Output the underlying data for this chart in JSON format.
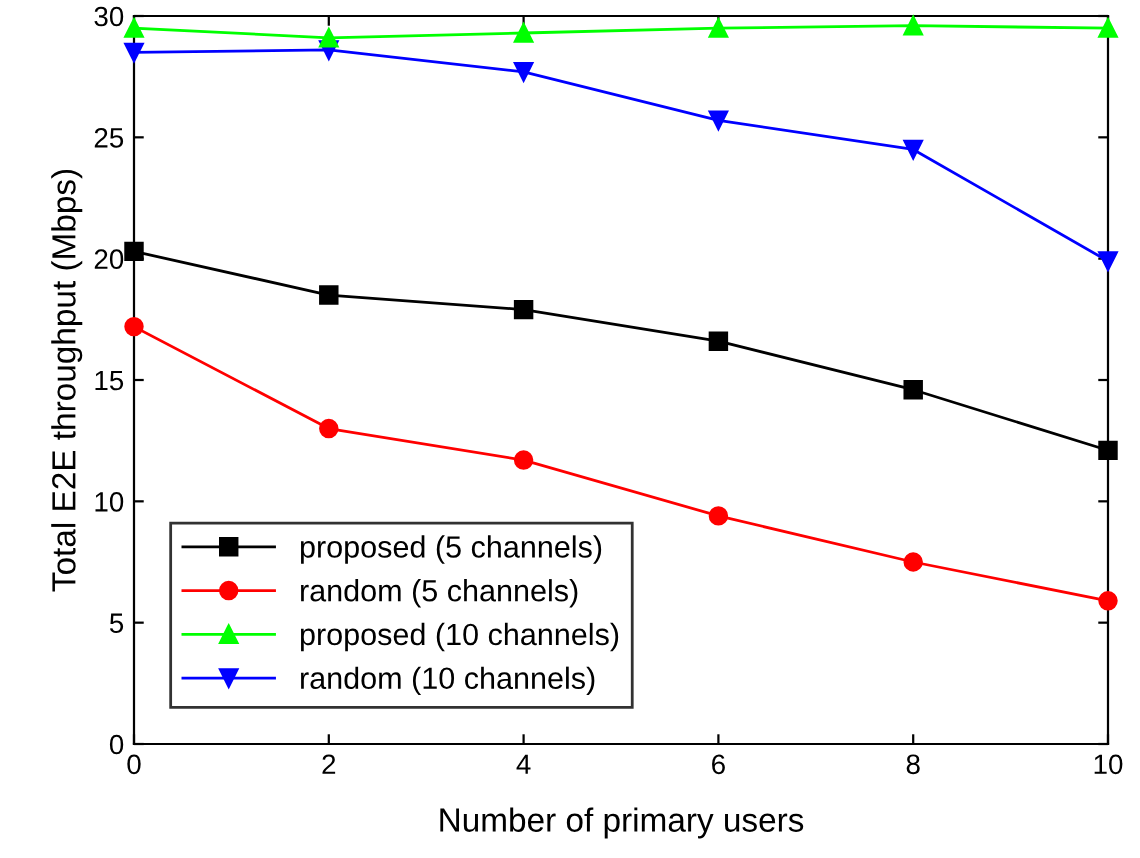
{
  "chart_data": {
    "type": "line",
    "xlabel": "Number of primary users",
    "ylabel": "Total E2E throughput (Mbps)",
    "x": [
      0,
      2,
      4,
      6,
      8,
      10
    ],
    "series": [
      {
        "name": "proposed (5 channels)",
        "color": "#000000",
        "marker": "square",
        "values": [
          20.3,
          18.5,
          17.9,
          16.6,
          14.6,
          12.1
        ]
      },
      {
        "name": "random (5 channels)",
        "color": "#ff0000",
        "marker": "circle",
        "values": [
          17.2,
          13.0,
          11.7,
          9.4,
          7.5,
          5.9
        ]
      },
      {
        "name": "proposed (10 channels)",
        "color": "#00ff00",
        "marker": "triangle",
        "values": [
          29.5,
          29.1,
          29.3,
          29.5,
          29.6,
          29.5
        ]
      },
      {
        "name": "random (10 channels)",
        "color": "#0000ff",
        "marker": "triangle_down",
        "values": [
          28.5,
          28.6,
          27.7,
          25.7,
          24.5,
          19.9
        ]
      }
    ],
    "xlim": [
      0,
      10
    ],
    "xticks": [
      0,
      2,
      4,
      6,
      8,
      10
    ],
    "ylim": [
      0,
      30
    ],
    "yticks": [
      0,
      5,
      10,
      15,
      20,
      25,
      30
    ],
    "grid": false,
    "legend": "bottom left"
  }
}
